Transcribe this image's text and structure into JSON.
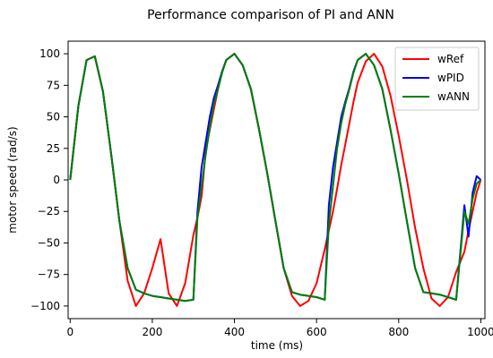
{
  "chart_data": {
    "type": "line",
    "title": "Performance comparison of PI and ANN",
    "xlabel": "time (ms)",
    "ylabel": "motor speed (rad/s)",
    "xlim": [
      -5,
      1010
    ],
    "ylim": [
      -110,
      110
    ],
    "x_ticks": [
      0,
      200,
      400,
      600,
      800,
      1000
    ],
    "y_ticks": [
      -100,
      -75,
      -50,
      -25,
      0,
      25,
      50,
      75,
      100
    ],
    "grid": false,
    "legend_position": "top-right",
    "x": [
      0,
      20,
      40,
      60,
      80,
      100,
      120,
      140,
      160,
      180,
      200,
      220,
      240,
      260,
      280,
      300,
      310,
      320,
      330,
      340,
      350,
      360,
      370,
      380,
      400,
      420,
      440,
      460,
      480,
      500,
      520,
      540,
      560,
      580,
      600,
      620,
      630,
      640,
      650,
      660,
      670,
      680,
      690,
      700,
      720,
      740,
      760,
      780,
      800,
      820,
      840,
      860,
      880,
      900,
      920,
      940,
      960,
      970,
      980,
      990,
      1000
    ],
    "series": [
      {
        "name": "wRef",
        "color": "#ff0000",
        "values": [
          0,
          59,
          95,
          98,
          70,
          20,
          -33,
          -80,
          -100,
          -90,
          -70,
          -47,
          -90,
          -100,
          -82,
          -44,
          -30,
          -13,
          23,
          40,
          56,
          72,
          86,
          95,
          100,
          91,
          72,
          40,
          5,
          -33,
          -70,
          -92,
          -100,
          -96,
          -82,
          -55,
          -40,
          -25,
          -7,
          12,
          28,
          45,
          62,
          77,
          94,
          100,
          90,
          67,
          35,
          0,
          -38,
          -70,
          -94,
          -100,
          -93,
          -73,
          -57,
          -40,
          -25,
          -10,
          0
        ]
      },
      {
        "name": "wPID",
        "color": "#0000ff",
        "values": [
          0,
          59,
          95,
          98,
          70,
          20,
          -33,
          -70,
          -87,
          -90,
          -92,
          -93,
          -94,
          -95,
          -96,
          -95,
          -25,
          10,
          30,
          50,
          65,
          75,
          86,
          95,
          100,
          91,
          72,
          40,
          5,
          -33,
          -70,
          -89,
          -91,
          -92,
          -93,
          -95,
          -20,
          10,
          30,
          50,
          62,
          73,
          86,
          95,
          100,
          91,
          72,
          40,
          5,
          -33,
          -70,
          -89,
          -90,
          -91,
          -93,
          -95,
          -20,
          -45,
          -10,
          3,
          0
        ]
      },
      {
        "name": "wANN",
        "color": "#008000",
        "values": [
          0,
          59,
          95,
          98,
          70,
          20,
          -33,
          -70,
          -87,
          -90,
          -92,
          -93,
          -94,
          -95,
          -96,
          -95,
          -30,
          -5,
          20,
          42,
          60,
          72,
          85,
          95,
          100,
          91,
          72,
          40,
          5,
          -33,
          -70,
          -89,
          -91,
          -92,
          -93,
          -95,
          -35,
          -5,
          25,
          45,
          60,
          72,
          85,
          95,
          100,
          91,
          72,
          40,
          5,
          -33,
          -70,
          -89,
          -90,
          -91,
          -93,
          -95,
          -25,
          -35,
          -15,
          -3,
          0
        ]
      }
    ]
  }
}
